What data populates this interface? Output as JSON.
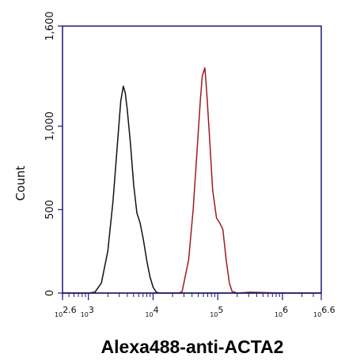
{
  "chart_data": {
    "type": "line",
    "title": "",
    "xlabel": "Alexa488-anti-ACTA2",
    "ylabel": "Count",
    "x_scale": "log10",
    "xlim": [
      2.6,
      6.6
    ],
    "ylim": [
      0,
      1600
    ],
    "y_ticks": [
      0,
      500,
      1000,
      1600
    ],
    "y_tick_labels": [
      "0",
      "500",
      "1,000",
      "1,600"
    ],
    "x_ticks": [
      {
        "value": 2.6,
        "base": "10",
        "exp": "2.6"
      },
      {
        "value": 3,
        "base": "10",
        "exp": "3"
      },
      {
        "value": 4,
        "base": "10",
        "exp": "4"
      },
      {
        "value": 5,
        "base": "10",
        "exp": "5"
      },
      {
        "value": 6,
        "base": "10",
        "exp": "6"
      },
      {
        "value": 6.6,
        "base": "10",
        "exp": "6.6"
      }
    ],
    "grid": false,
    "series": [
      {
        "color": "#111111",
        "points": [
          [
            2.6,
            0
          ],
          [
            3.0,
            0
          ],
          [
            3.1,
            5
          ],
          [
            3.2,
            60
          ],
          [
            3.3,
            250
          ],
          [
            3.38,
            550
          ],
          [
            3.45,
            900
          ],
          [
            3.5,
            1150
          ],
          [
            3.54,
            1240
          ],
          [
            3.57,
            1200
          ],
          [
            3.6,
            1100
          ],
          [
            3.65,
            900
          ],
          [
            3.7,
            650
          ],
          [
            3.75,
            480
          ],
          [
            3.8,
            420
          ],
          [
            3.85,
            320
          ],
          [
            3.9,
            200
          ],
          [
            3.95,
            100
          ],
          [
            4.0,
            35
          ],
          [
            4.05,
            5
          ],
          [
            4.1,
            0
          ],
          [
            6.6,
            0
          ]
        ]
      },
      {
        "color": "#a01a20",
        "points": [
          [
            2.6,
            0
          ],
          [
            4.4,
            0
          ],
          [
            4.45,
            10
          ],
          [
            4.55,
            200
          ],
          [
            4.62,
            500
          ],
          [
            4.68,
            850
          ],
          [
            4.73,
            1150
          ],
          [
            4.76,
            1300
          ],
          [
            4.8,
            1350
          ],
          [
            4.83,
            1200
          ],
          [
            4.87,
            950
          ],
          [
            4.92,
            620
          ],
          [
            4.98,
            450
          ],
          [
            5.03,
            420
          ],
          [
            5.08,
            380
          ],
          [
            5.13,
            200
          ],
          [
            5.18,
            60
          ],
          [
            5.22,
            10
          ],
          [
            5.3,
            0
          ],
          [
            5.5,
            5
          ],
          [
            6.0,
            0
          ],
          [
            6.6,
            0
          ]
        ]
      }
    ]
  }
}
